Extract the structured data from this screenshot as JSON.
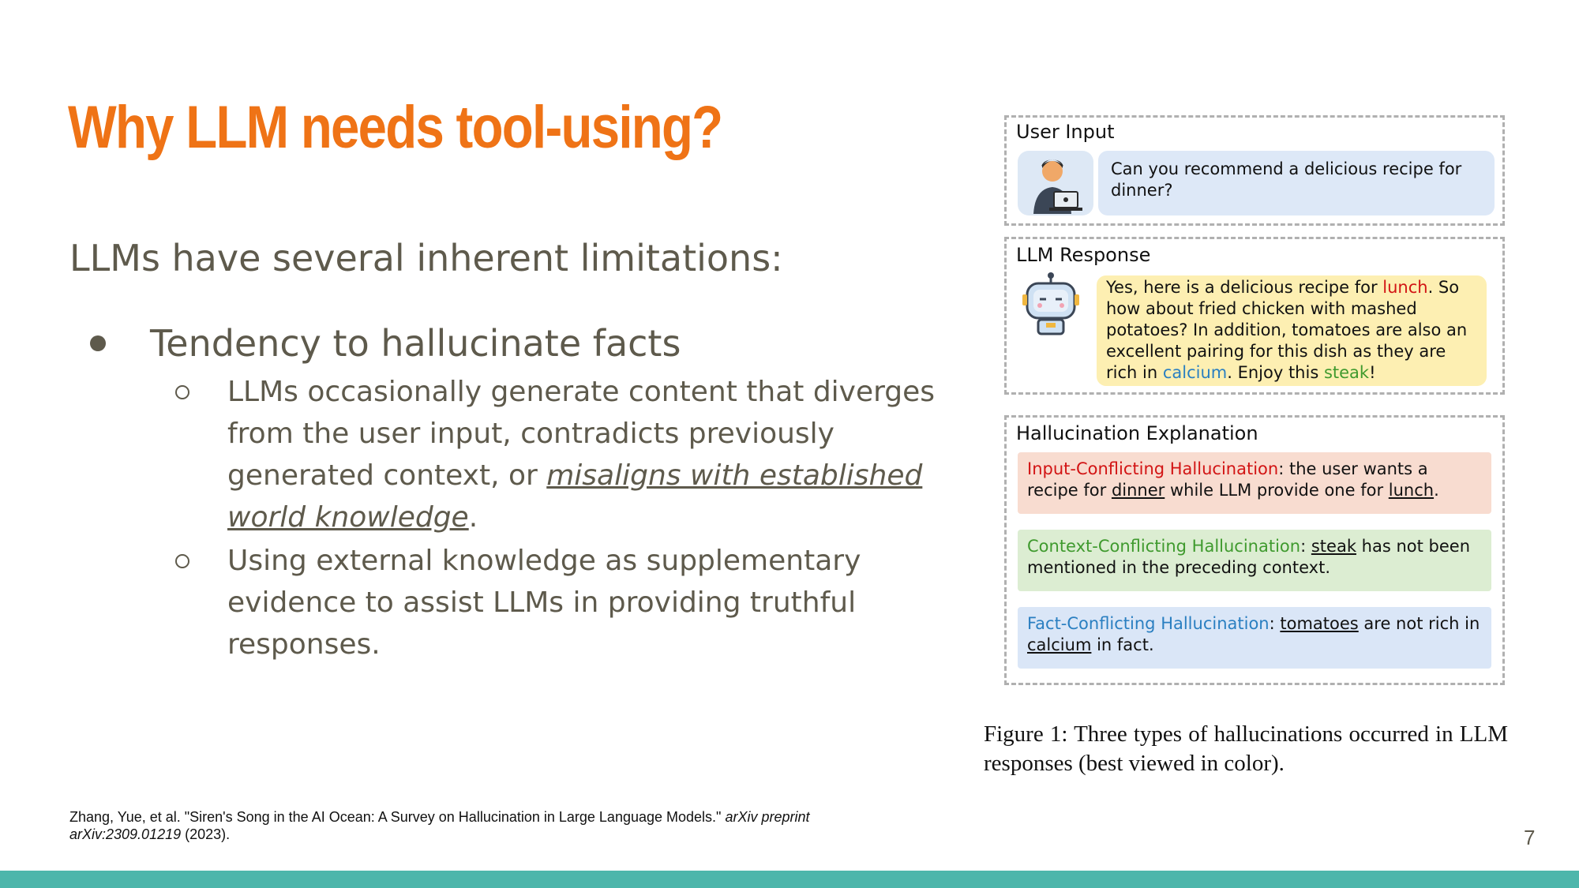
{
  "slide": {
    "title": "Why LLM needs tool-using?",
    "intro": "LLMs have several inherent limitations:",
    "bullet": "Tendency to hallucinate facts",
    "sub1_text": "LLMs occasionally generate content that diverges from the user input, contradicts previously generated context, or ",
    "sub1_link": "misaligns with established world knowledge",
    "sub1_end": ".",
    "sub2": "Using external knowledge as supplementary evidence to assist LLMs in providing truthful responses.",
    "citation_main": "Zhang, Yue, et al. \"Siren's Song in the AI Ocean: A Survey on Hallucination in Large Language Models.\" ",
    "citation_italic": "arXiv preprint arXiv:2309.01219",
    "citation_end": " (2023).",
    "page_number": "7"
  },
  "figure": {
    "user_input_label": "User Input",
    "user_message": "Can you recommend a delicious recipe for dinner?",
    "llm_response_label": "LLM Response",
    "resp_a": "Yes, here is a delicious recipe for ",
    "resp_lunch": "lunch",
    "resp_b": ". So how about fried chicken with mashed potatoes? In addition, tomatoes are also an excellent pairing for this dish as they are rich in ",
    "resp_calcium": "calcium",
    "resp_c": ". Enjoy this ",
    "resp_steak": "steak",
    "resp_d": "!",
    "explanation_label": "Hallucination Explanation",
    "input_title": "Input-Conflicting Hallucination",
    "input_a": ": the user wants a recipe for ",
    "input_dinner": "dinner",
    "input_b": " while LLM provide one for ",
    "input_lunch": "lunch",
    "input_c": ".",
    "context_title": "Context-Conflicting Hallucination",
    "context_a": ": ",
    "context_steak": "steak",
    "context_b": " has not been mentioned in the preceding context.",
    "fact_title": "Fact-Conflicting Hallucination",
    "fact_a": ": ",
    "fact_tomatoes": "tomatoes",
    "fact_b": " are not rich in ",
    "fact_calcium": "calcium",
    "fact_c": " in fact.",
    "caption": "Figure 1:  Three types of hallucinations occurred in LLM responses (best viewed in color).",
    "colors": {
      "user_bubble": "#dde8f7",
      "llm_bubble": "#fdefb2",
      "input_box": "#f8dcd0",
      "context_box": "#dcedd2",
      "fact_box": "#dae6f7"
    }
  }
}
